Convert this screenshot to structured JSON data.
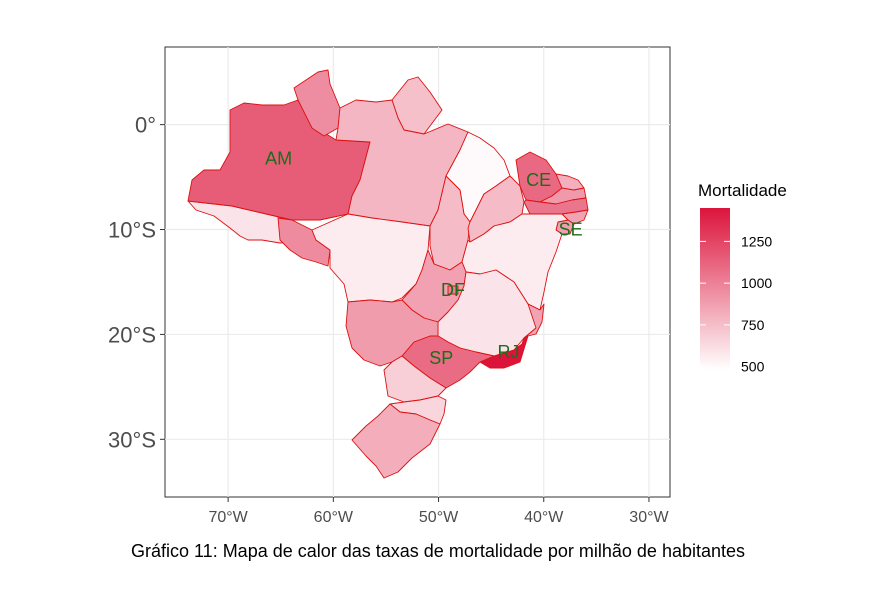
{
  "chart_data": {
    "type": "choropleth-map",
    "caption": "Gráfico 11: Mapa de calor das taxas de mortalidade por milhão de habitantes",
    "legend": {
      "title": "Mortalidade",
      "breaks": [
        1250,
        1000,
        750,
        500
      ],
      "break_labels": [
        "1250",
        "1000",
        "750",
        "500"
      ],
      "range": [
        480,
        1450
      ],
      "color_low": "#ffffff",
      "color_high": "#dc143c",
      "placement": "right"
    },
    "axes": {
      "x_ticks": [
        "70°W",
        "60°W",
        "50°W",
        "40°W",
        "30°W"
      ],
      "x_tick_values": [
        -70,
        -60,
        -50,
        -40,
        -30
      ],
      "y_ticks": [
        "0°",
        "10°S",
        "20°S",
        "30°S"
      ],
      "y_tick_values": [
        0,
        -10,
        -20,
        -30
      ],
      "xlim": [
        -76,
        -28
      ],
      "ylim": [
        -35.5,
        7.4
      ],
      "grid": true
    },
    "border_color": "#dd1111",
    "regions": [
      {
        "id": "AM",
        "mortality": 1150
      },
      {
        "id": "RR",
        "mortality": 950
      },
      {
        "id": "AP",
        "mortality": 740
      },
      {
        "id": "PA",
        "mortality": 780
      },
      {
        "id": "AC",
        "mortality": 590
      },
      {
        "id": "RO",
        "mortality": 960
      },
      {
        "id": "MT",
        "mortality": 560
      },
      {
        "id": "TO",
        "mortality": 760
      },
      {
        "id": "MA",
        "mortality": 500
      },
      {
        "id": "PI",
        "mortality": 760
      },
      {
        "id": "CE",
        "mortality": 1100
      },
      {
        "id": "RN",
        "mortality": 810
      },
      {
        "id": "PB",
        "mortality": 900
      },
      {
        "id": "PE",
        "mortality": 1050
      },
      {
        "id": "AL",
        "mortality": 860
      },
      {
        "id": "SE",
        "mortality": 880
      },
      {
        "id": "BA",
        "mortality": 560
      },
      {
        "id": "GO",
        "mortality": 870
      },
      {
        "id": "DF",
        "mortality": 1000
      },
      {
        "id": "MG",
        "mortality": 590
      },
      {
        "id": "ES",
        "mortality": 860
      },
      {
        "id": "RJ",
        "mortality": 1450
      },
      {
        "id": "SP",
        "mortality": 1090
      },
      {
        "id": "MS",
        "mortality": 890
      },
      {
        "id": "PR",
        "mortality": 680
      },
      {
        "id": "SC",
        "mortality": 650
      },
      {
        "id": "RS",
        "mortality": 820
      }
    ],
    "labeled_regions": [
      "AM",
      "CE",
      "SE",
      "DF",
      "SP",
      "RJ"
    ],
    "label_color": "#1a6e1a"
  }
}
